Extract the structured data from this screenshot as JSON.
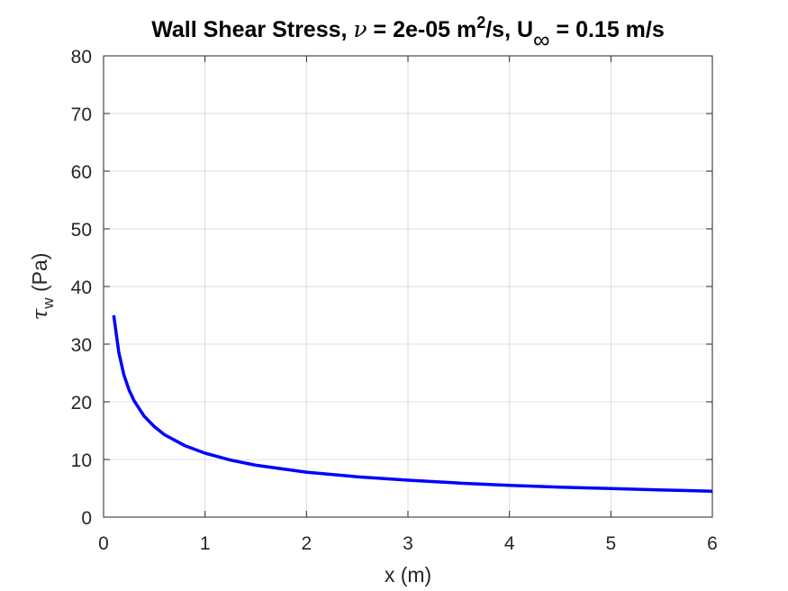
{
  "chart_data": {
    "type": "line",
    "title": {
      "prefix": "Wall Shear Stress, ",
      "nu_symbol": "ν",
      "nu_mid": " = 2e-05 m",
      "nu_sup": "2",
      "nu_end": "/s, U",
      "u_sub": "∞",
      "u_end": " = 0.15 m/s"
    },
    "xlabel": "x (m)",
    "ylabel": {
      "symbol": "τ",
      "subscript": "w",
      "unit": " (Pa)"
    },
    "xlim": [
      0,
      6
    ],
    "ylim": [
      0,
      80
    ],
    "xticks": [
      0,
      1,
      2,
      3,
      4,
      5,
      6
    ],
    "yticks": [
      0,
      10,
      20,
      30,
      40,
      50,
      60,
      70,
      80
    ],
    "grid": true,
    "series": [
      {
        "color": "#0000ff",
        "x": [
          0.1,
          0.15,
          0.2,
          0.25,
          0.3,
          0.4,
          0.5,
          0.6,
          0.8,
          1.0,
          1.25,
          1.5,
          2.0,
          2.5,
          3.0,
          3.5,
          4.0,
          4.5,
          5.0,
          5.5,
          6.0
        ],
        "y": [
          35.0,
          28.6,
          24.7,
          22.1,
          20.2,
          17.5,
          15.7,
          14.3,
          12.4,
          11.1,
          9.9,
          9.0,
          7.8,
          7.0,
          6.4,
          5.9,
          5.5,
          5.2,
          4.95,
          4.7,
          4.5
        ]
      }
    ]
  }
}
